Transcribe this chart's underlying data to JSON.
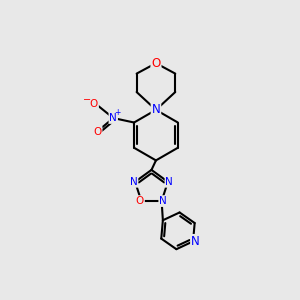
{
  "bg_color": "#e8e8e8",
  "bond_color": "#000000",
  "bond_width": 1.5,
  "atom_colors": {
    "N": "#0000ff",
    "O": "#ff0000",
    "C": "#000000"
  },
  "font_size_atom": 8.5,
  "fig_size": [
    3.0,
    3.0
  ],
  "dpi": 100
}
